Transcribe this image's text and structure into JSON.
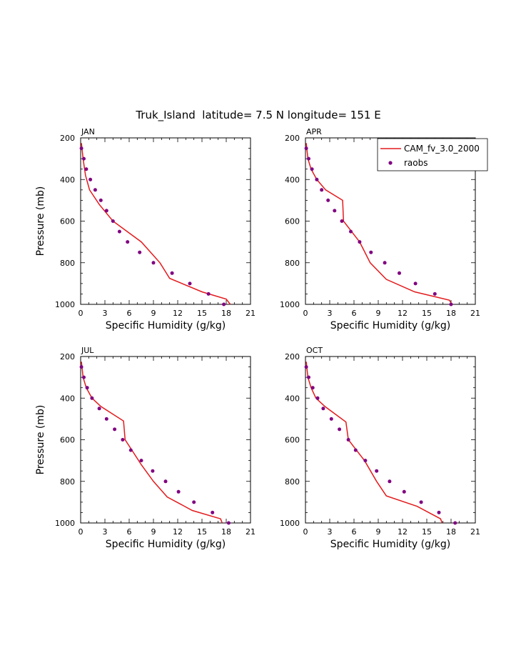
{
  "title": "Truk_Island  latitude= 7.5 N longitude= 151 E",
  "colors": {
    "model": "#e31a1c",
    "obs": "#800080",
    "axis": "#000000"
  },
  "legend": {
    "model_label": "CAM_fv_3.0_2000",
    "obs_label": "raobs"
  },
  "chart_data": [
    {
      "type": "line",
      "panel": "JAN",
      "xlabel": "Specific Humidity (g/kg)",
      "ylabel": "Pressure (mb)",
      "xlim": [
        0,
        21
      ],
      "ylim": [
        1000,
        200
      ],
      "y_inverted": true,
      "xticks": [
        0,
        3,
        6,
        9,
        12,
        15,
        18,
        21
      ],
      "yticks": [
        200,
        400,
        600,
        800,
        1000
      ],
      "series": [
        {
          "name": "CAM_fv_3.0_2000",
          "style": "line",
          "x": [
            0.1,
            0.3,
            0.6,
            1.1,
            2.3,
            4.0,
            7.5,
            9.8,
            11.0,
            15.0,
            18.0,
            18.5
          ],
          "y": [
            225,
            300,
            380,
            450,
            520,
            600,
            700,
            800,
            875,
            940,
            975,
            1000
          ]
        },
        {
          "name": "raobs",
          "style": "dots",
          "x": [
            0.1,
            0.4,
            0.7,
            1.2,
            1.8,
            2.5,
            3.2,
            4.0,
            4.8,
            5.8,
            7.3,
            9.0,
            11.3,
            13.5,
            15.8,
            17.7
          ],
          "y": [
            250,
            300,
            350,
            400,
            450,
            500,
            550,
            600,
            650,
            700,
            750,
            800,
            850,
            900,
            950,
            1000
          ]
        }
      ]
    },
    {
      "type": "line",
      "panel": "APR",
      "xlabel": "Specific Humidity (g/kg)",
      "ylabel": "",
      "xlim": [
        0,
        21
      ],
      "ylim": [
        1000,
        200
      ],
      "y_inverted": true,
      "xticks": [
        0,
        3,
        6,
        9,
        12,
        15,
        18,
        21
      ],
      "yticks": [
        200,
        400,
        600,
        800,
        1000
      ],
      "series": [
        {
          "name": "CAM_fv_3.0_2000",
          "style": "line",
          "x": [
            0.1,
            0.3,
            0.7,
            1.4,
            2.5,
            4.6,
            4.7,
            5.7,
            6.7,
            8.0,
            10.0,
            13.5,
            17.8,
            18.1
          ],
          "y": [
            225,
            300,
            350,
            400,
            450,
            500,
            600,
            650,
            700,
            800,
            880,
            940,
            980,
            1000
          ]
        },
        {
          "name": "raobs",
          "style": "dots",
          "x": [
            0.1,
            0.4,
            0.8,
            1.4,
            2.0,
            2.8,
            3.6,
            4.5,
            5.6,
            6.7,
            8.1,
            9.8,
            11.6,
            13.6,
            16.0,
            18.0
          ],
          "y": [
            250,
            300,
            350,
            400,
            450,
            500,
            550,
            600,
            650,
            700,
            750,
            800,
            850,
            900,
            950,
            1000
          ]
        }
      ]
    },
    {
      "type": "line",
      "panel": "JUL",
      "xlabel": "Specific Humidity (g/kg)",
      "ylabel": "Pressure (mb)",
      "xlim": [
        0,
        21
      ],
      "ylim": [
        1000,
        200
      ],
      "y_inverted": true,
      "xticks": [
        0,
        3,
        6,
        9,
        12,
        15,
        18,
        21
      ],
      "yticks": [
        200,
        400,
        600,
        800,
        1000
      ],
      "series": [
        {
          "name": "CAM_fv_3.0_2000",
          "style": "line",
          "x": [
            0.1,
            0.3,
            0.7,
            1.4,
            2.5,
            5.3,
            5.5,
            6.5,
            7.5,
            9.0,
            10.7,
            13.8,
            17.3,
            17.5
          ],
          "y": [
            225,
            300,
            350,
            400,
            440,
            510,
            600,
            660,
            720,
            800,
            875,
            940,
            980,
            1000
          ]
        },
        {
          "name": "raobs",
          "style": "dots",
          "x": [
            0.1,
            0.4,
            0.8,
            1.4,
            2.3,
            3.2,
            4.2,
            5.2,
            6.2,
            7.5,
            8.9,
            10.5,
            12.1,
            14.0,
            16.3,
            18.3
          ],
          "y": [
            250,
            300,
            350,
            400,
            450,
            500,
            550,
            600,
            650,
            700,
            750,
            800,
            850,
            900,
            950,
            1000
          ]
        }
      ]
    },
    {
      "type": "line",
      "panel": "OCT",
      "xlabel": "Specific Humidity (g/kg)",
      "ylabel": "",
      "xlim": [
        0,
        21
      ],
      "ylim": [
        1000,
        200
      ],
      "y_inverted": true,
      "xticks": [
        0,
        3,
        6,
        9,
        12,
        15,
        18,
        21
      ],
      "yticks": [
        200,
        400,
        600,
        800,
        1000
      ],
      "series": [
        {
          "name": "CAM_fv_3.0_2000",
          "style": "line",
          "x": [
            0.1,
            0.3,
            0.7,
            1.3,
            2.4,
            5.0,
            5.3,
            6.3,
            7.3,
            8.8,
            10.0,
            13.8,
            16.7,
            16.9
          ],
          "y": [
            225,
            300,
            350,
            400,
            440,
            515,
            600,
            650,
            700,
            800,
            870,
            920,
            980,
            1000
          ]
        },
        {
          "name": "raobs",
          "style": "dots",
          "x": [
            0.1,
            0.4,
            0.9,
            1.5,
            2.2,
            3.2,
            4.2,
            5.3,
            6.2,
            7.4,
            8.8,
            10.4,
            12.2,
            14.3,
            16.5,
            18.5
          ],
          "y": [
            250,
            300,
            350,
            400,
            450,
            500,
            550,
            600,
            650,
            700,
            750,
            800,
            850,
            900,
            950,
            1000
          ]
        }
      ]
    }
  ]
}
